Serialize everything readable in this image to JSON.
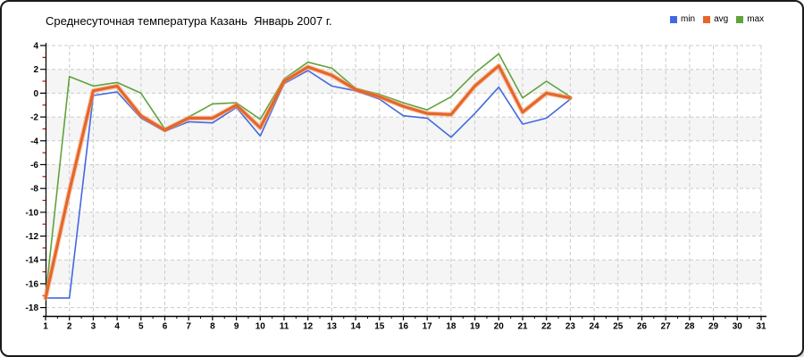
{
  "title": "Среднесуточная температура Казань  Январь 2007 г.",
  "legend": {
    "items": [
      {
        "label": "min",
        "color": "#4169e1"
      },
      {
        "label": "avg",
        "color": "#e5662b"
      },
      {
        "label": "max",
        "color": "#5fa33c"
      }
    ]
  },
  "chart_data": {
    "type": "line",
    "title": "Среднесуточная температура Казань  Январь 2007 г.",
    "xlim": [
      1,
      31
    ],
    "ylim": [
      -18,
      4
    ],
    "x_ticks": [
      1,
      2,
      3,
      4,
      5,
      6,
      7,
      8,
      9,
      10,
      11,
      12,
      13,
      14,
      15,
      16,
      17,
      18,
      19,
      20,
      21,
      22,
      23,
      24,
      25,
      26,
      27,
      28,
      29,
      30,
      31
    ],
    "y_ticks": [
      4,
      2,
      0,
      -2,
      -4,
      -6,
      -8,
      -10,
      -12,
      -14,
      -16,
      -18
    ],
    "days": [
      1,
      2,
      3,
      4,
      5,
      6,
      7,
      8,
      9,
      10,
      11,
      12,
      13,
      14,
      15,
      16,
      17,
      18,
      19,
      20,
      21,
      22,
      23
    ],
    "series": [
      {
        "name": "min",
        "color": "#4169e1",
        "values": [
          -17.2,
          -17.2,
          -0.2,
          0.1,
          -2.1,
          -3.2,
          -2.4,
          -2.5,
          -1.2,
          -3.6,
          0.8,
          1.9,
          0.6,
          0.2,
          -0.5,
          -1.9,
          -2.1,
          -3.7,
          -1.7,
          0.5,
          -2.6,
          -2.1,
          -0.5
        ]
      },
      {
        "name": "avg",
        "color": "#e5662b",
        "values": [
          -17.2,
          -8.2,
          0.2,
          0.6,
          -1.9,
          -3.1,
          -2.1,
          -2.1,
          -1.0,
          -2.9,
          1.0,
          2.2,
          1.5,
          0.3,
          -0.3,
          -1.1,
          -1.7,
          -1.8,
          0.6,
          2.3,
          -1.6,
          0.0,
          -0.4
        ]
      },
      {
        "name": "max",
        "color": "#5fa33c",
        "values": [
          -17.1,
          1.4,
          0.6,
          0.9,
          0.0,
          -3.0,
          -2.0,
          -0.9,
          -0.8,
          -2.2,
          1.2,
          2.6,
          2.1,
          0.4,
          -0.1,
          -0.8,
          -1.4,
          -0.3,
          1.7,
          3.3,
          -0.4,
          1.0,
          -0.3
        ]
      }
    ],
    "grid": {
      "horizontal_step": 2,
      "vertical_step": 1,
      "style": "dashed",
      "zebra_banding": true
    },
    "legend_position": "top-right"
  },
  "colors": {
    "grid": "#cbcbcb",
    "zebra_band": "#f5f5f6",
    "axis": "#000000",
    "minor_tick": "#e00000",
    "avg_halo": "#f2a36c",
    "background": "#ffffff",
    "border": "#1a1a1a"
  }
}
